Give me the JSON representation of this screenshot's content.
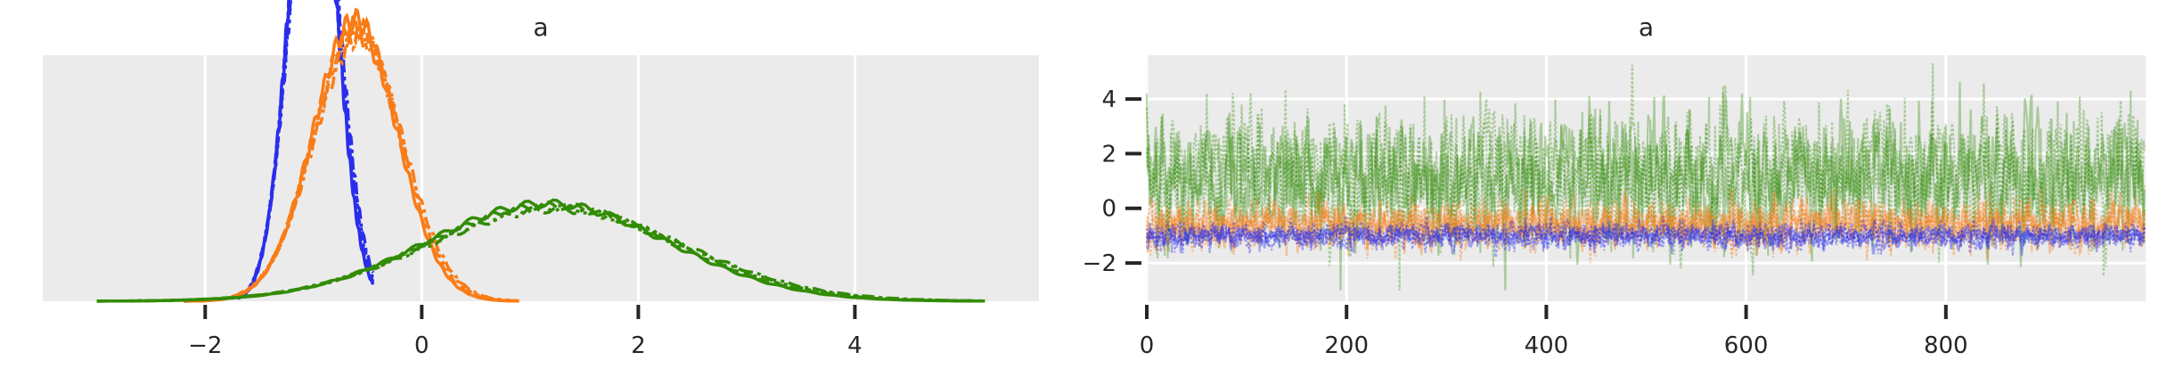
{
  "chart_data": [
    {
      "type": "line",
      "chart_kind": "kde",
      "title": "a",
      "xlabel": "",
      "ylabel": "",
      "xlim": [
        -3.5,
        5.7
      ],
      "ylim": [
        0,
        0.9
      ],
      "x_ticks": [
        -2,
        0,
        2,
        4
      ],
      "x_tick_labels": [
        "−2",
        "0",
        "2",
        "4"
      ],
      "y_ticks": [],
      "grid": true,
      "background": "#ebebeb",
      "grid_color": "#ffffff",
      "series": [
        {
          "color": "#2a2eec",
          "mean": -1.0,
          "sd": 0.22,
          "x_range": [
            -1.7,
            -0.45
          ],
          "chains": 4
        },
        {
          "color": "#fa7c17",
          "mean": -0.6,
          "sd": 0.4,
          "x_range": [
            -2.2,
            0.9
          ],
          "chains": 4
        },
        {
          "color": "#328c06",
          "mean": 1.2,
          "sd": 1.15,
          "x_range": [
            -3.0,
            5.2
          ],
          "chains": 4
        }
      ]
    },
    {
      "type": "line",
      "chart_kind": "trace",
      "title": "a",
      "xlabel": "",
      "ylabel": "",
      "xlim": [
        0,
        1000
      ],
      "ylim": [
        -3.4,
        5.6
      ],
      "x_ticks": [
        0,
        200,
        400,
        600,
        800
      ],
      "x_tick_labels": [
        "0",
        "200",
        "400",
        "600",
        "800"
      ],
      "y_ticks": [
        4,
        2,
        0,
        -2
      ],
      "y_tick_labels": [
        "4",
        "2",
        "0",
        "−2"
      ],
      "grid": true,
      "background": "#ebebeb",
      "grid_color": "#ffffff",
      "draws": 1000,
      "series": [
        {
          "color": "#328c06",
          "mean": 1.2,
          "sd": 1.15,
          "alpha": 0.35,
          "chains": 4
        },
        {
          "color": "#fa7c17",
          "mean": -0.6,
          "sd": 0.4,
          "alpha": 0.4,
          "chains": 4
        },
        {
          "color": "#2a2eec",
          "mean": -1.0,
          "sd": 0.22,
          "alpha": 0.4,
          "chains": 4
        }
      ]
    }
  ]
}
